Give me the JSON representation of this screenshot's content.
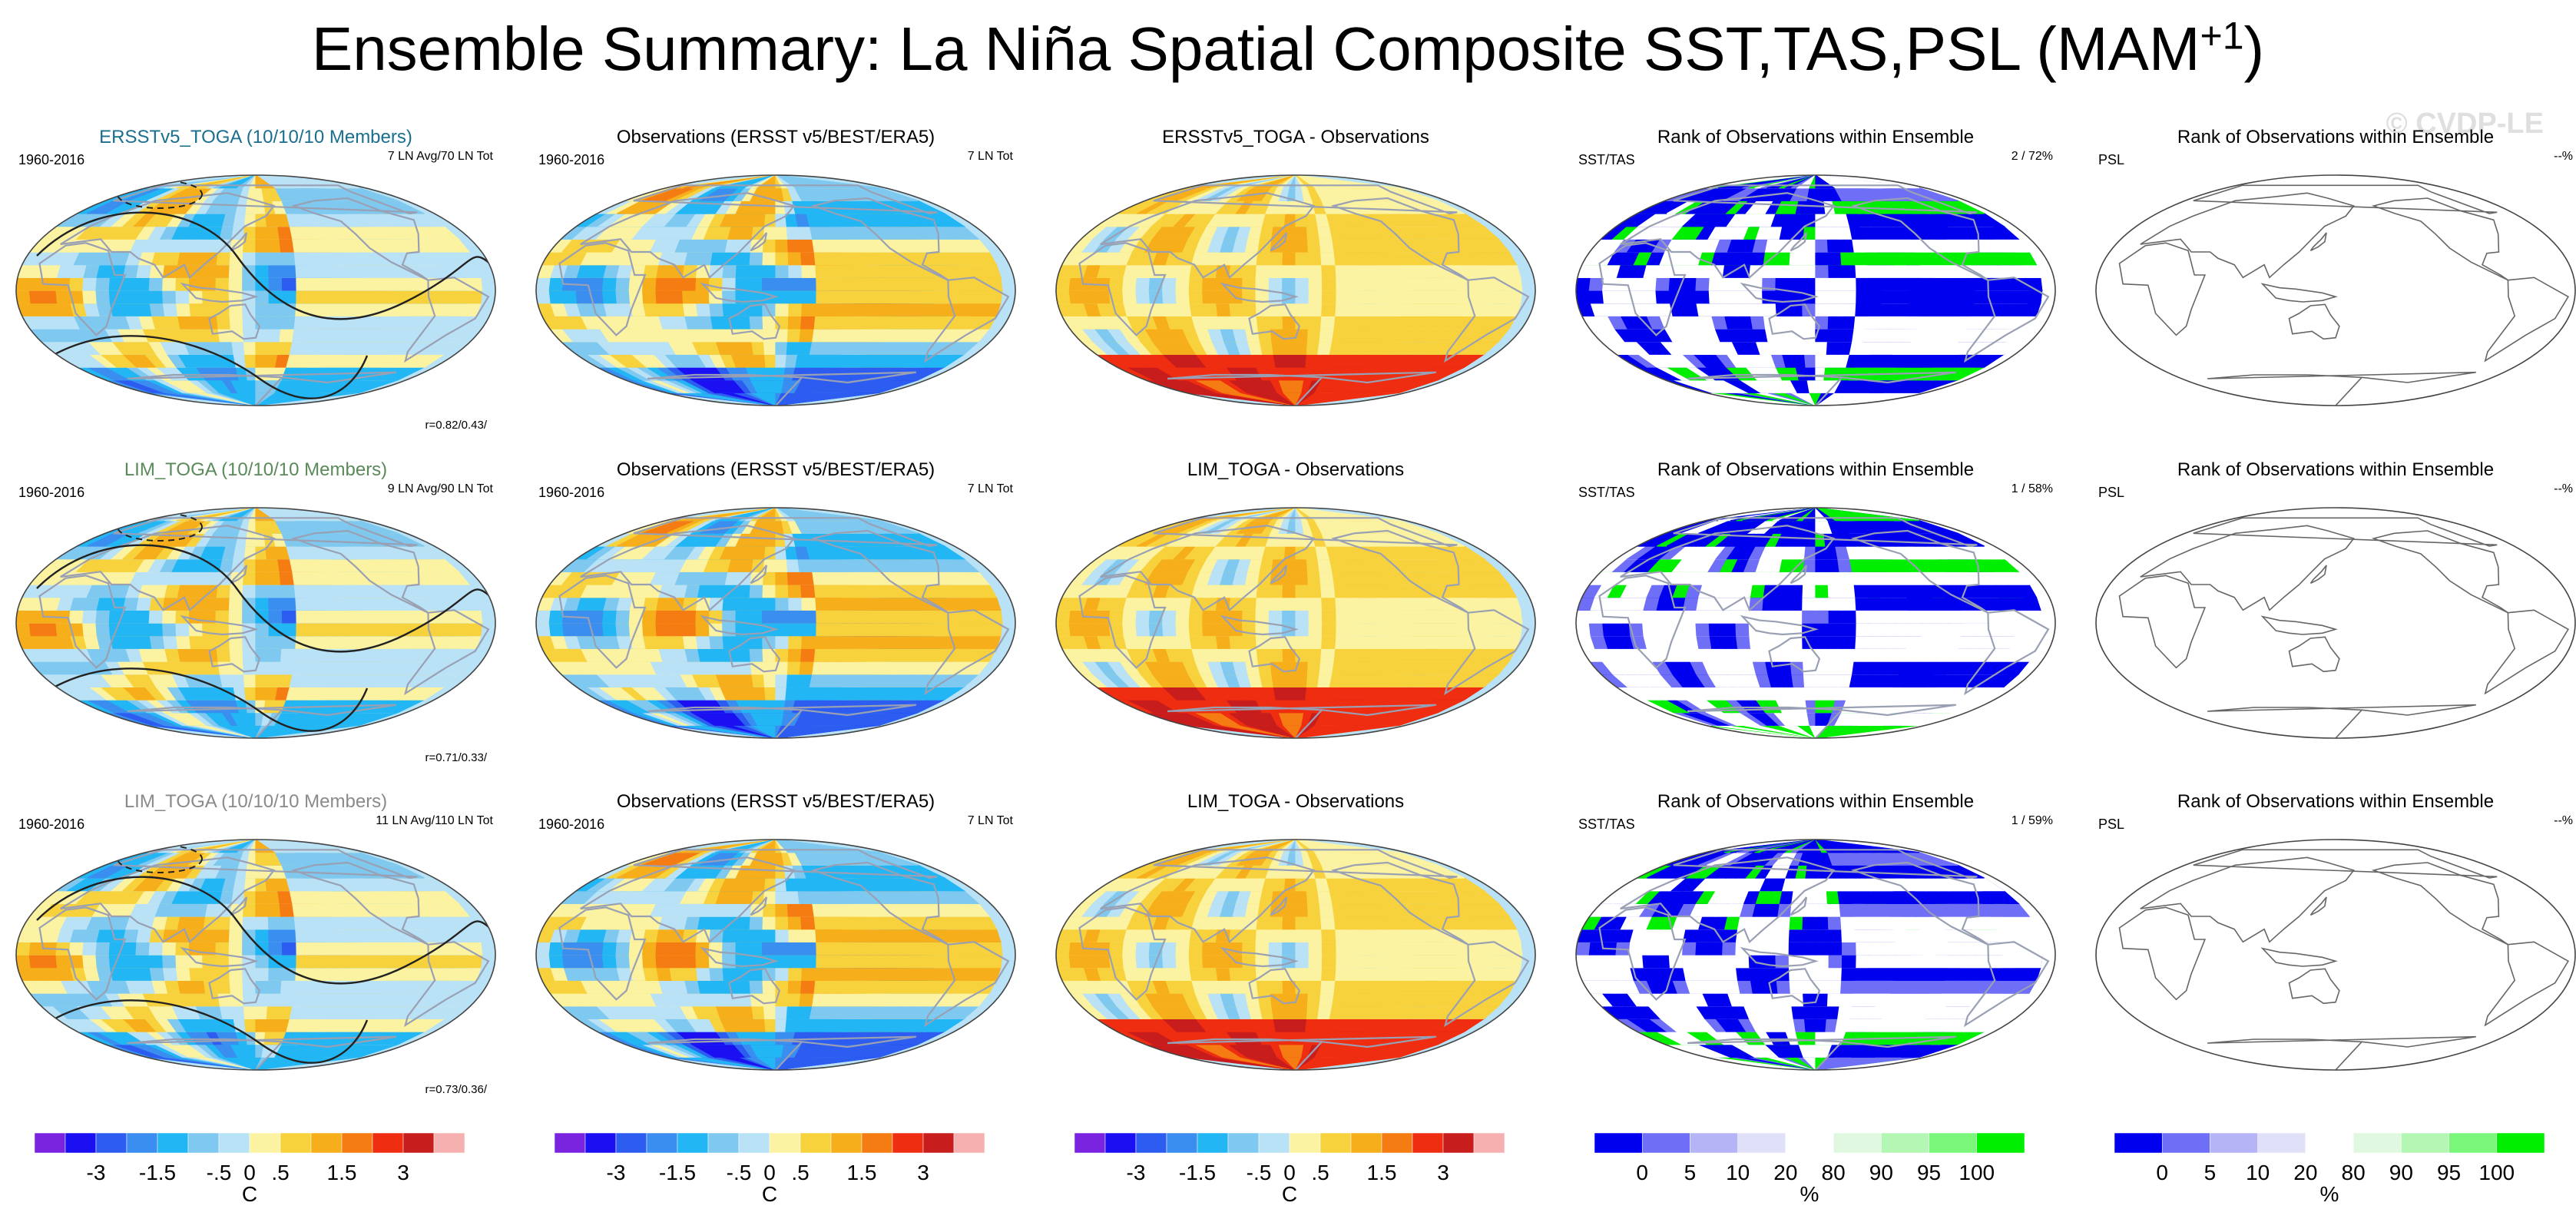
{
  "title_main": "Ensemble Summary: La Niña Spatial Composite SST,TAS,PSL (MAM",
  "title_sup": "+1",
  "title_end": ")",
  "watermark": "© CVDP-LE",
  "colors": {
    "diverging": [
      "#7b24e0",
      "#1b10f2",
      "#2c5df0",
      "#3a8ef0",
      "#22b6f4",
      "#7fc9f0",
      "#b9e2f6",
      "#fbf3a1",
      "#f8d23c",
      "#f6ae1a",
      "#f47c12",
      "#ef2d10",
      "#c81d1d",
      "#f7b0b0"
    ],
    "rank": [
      "#0000ee",
      "#6e6ef6",
      "#b4b4f6",
      "#e0e0f8",
      "#ffffff",
      "#e0f8e0",
      "#b4f6b4",
      "#7af67a",
      "#00ee00"
    ],
    "coastline": "#9aa0b4",
    "contour": "#222222"
  },
  "chart_data": [
    {
      "type": "heatmap",
      "row": 1,
      "col": 1,
      "title": "ERSSTv5_TOGA (10/10/10 Members)",
      "title_color": "#1a6e8e",
      "left_label": "1960-2016",
      "right_label": "7 LN Avg/70 LN Tot",
      "corr_label": "r=0.82/0.43/",
      "kind": "ens"
    },
    {
      "type": "heatmap",
      "row": 1,
      "col": 2,
      "title": "Observations (ERSST v5/BEST/ERA5)",
      "title_color": "#000000",
      "left_label": "1960-2016",
      "right_label": "7 LN Tot",
      "kind": "obs"
    },
    {
      "type": "heatmap",
      "row": 1,
      "col": 3,
      "title": "ERSSTv5_TOGA - Observations",
      "title_color": "#000000",
      "kind": "diff"
    },
    {
      "type": "heatmap",
      "row": 1,
      "col": 4,
      "title": "Rank of Observations within Ensemble",
      "title_color": "#000000",
      "left_label": "SST/TAS",
      "right_label": "2 / 72%",
      "kind": "rank"
    },
    {
      "type": "heatmap",
      "row": 1,
      "col": 5,
      "title": "Rank of Observations within Ensemble",
      "title_color": "#000000",
      "left_label": "PSL",
      "right_label": "--%",
      "kind": "blank"
    },
    {
      "type": "heatmap",
      "row": 2,
      "col": 1,
      "title": "LIM_TOGA (10/10/10 Members)",
      "title_color": "#5a8a5a",
      "left_label": "1960-2016",
      "right_label": "9 LN Avg/90 LN Tot",
      "corr_label": "r=0.71/0.33/",
      "kind": "ens"
    },
    {
      "type": "heatmap",
      "row": 2,
      "col": 2,
      "title": "Observations (ERSST v5/BEST/ERA5)",
      "title_color": "#000000",
      "left_label": "1960-2016",
      "right_label": "7 LN Tot",
      "kind": "obs"
    },
    {
      "type": "heatmap",
      "row": 2,
      "col": 3,
      "title": "LIM_TOGA - Observations",
      "title_color": "#000000",
      "kind": "diff"
    },
    {
      "type": "heatmap",
      "row": 2,
      "col": 4,
      "title": "Rank of Observations within Ensemble",
      "title_color": "#000000",
      "left_label": "SST/TAS",
      "right_label": "1 / 58%",
      "kind": "rank"
    },
    {
      "type": "heatmap",
      "row": 2,
      "col": 5,
      "title": "Rank of Observations within Ensemble",
      "title_color": "#000000",
      "left_label": "PSL",
      "right_label": "--%",
      "kind": "blank"
    },
    {
      "type": "heatmap",
      "row": 3,
      "col": 1,
      "title": "LIM_TOGA (10/10/10 Members)",
      "title_color": "#8a8a8a",
      "left_label": "1960-2016",
      "right_label": "11 LN Avg/110 LN Tot",
      "corr_label": "r=0.73/0.36/",
      "kind": "ens"
    },
    {
      "type": "heatmap",
      "row": 3,
      "col": 2,
      "title": "Observations (ERSST v5/BEST/ERA5)",
      "title_color": "#000000",
      "left_label": "1960-2016",
      "right_label": "7 LN Tot",
      "kind": "obs"
    },
    {
      "type": "heatmap",
      "row": 3,
      "col": 3,
      "title": "LIM_TOGA - Observations",
      "title_color": "#000000",
      "kind": "diff"
    },
    {
      "type": "heatmap",
      "row": 3,
      "col": 4,
      "title": "Rank of Observations within Ensemble",
      "title_color": "#000000",
      "left_label": "SST/TAS",
      "right_label": "1 / 59%",
      "kind": "rank"
    },
    {
      "type": "heatmap",
      "row": 3,
      "col": 5,
      "title": "Rank of Observations within Ensemble",
      "title_color": "#000000",
      "left_label": "PSL",
      "right_label": "--%",
      "kind": "blank"
    }
  ],
  "colorbars": [
    {
      "kind": "diverging",
      "tick_labels": [
        "-3",
        "-1.5",
        "-.5",
        "0",
        ".5",
        "1.5",
        "3"
      ],
      "tick_positions": [
        2,
        4,
        6,
        7,
        8,
        10,
        12
      ],
      "unit": "C"
    },
    {
      "kind": "diverging",
      "tick_labels": [
        "-3",
        "-1.5",
        "-.5",
        "0",
        ".5",
        "1.5",
        "3"
      ],
      "tick_positions": [
        2,
        4,
        6,
        7,
        8,
        10,
        12
      ],
      "unit": "C"
    },
    {
      "kind": "diverging",
      "tick_labels": [
        "-3",
        "-1.5",
        "-.5",
        "0",
        ".5",
        "1.5",
        "3"
      ],
      "tick_positions": [
        2,
        4,
        6,
        7,
        8,
        10,
        12
      ],
      "unit": "C"
    },
    {
      "kind": "rank",
      "tick_labels": [
        "0",
        "5",
        "10",
        "20",
        "80",
        "90",
        "95",
        "100"
      ],
      "tick_positions": [
        1,
        2,
        3,
        4,
        5,
        6,
        7,
        8
      ],
      "unit": "%"
    },
    {
      "kind": "rank",
      "tick_labels": [
        "0",
        "5",
        "10",
        "20",
        "80",
        "90",
        "95",
        "100"
      ],
      "tick_positions": [
        1,
        2,
        3,
        4,
        5,
        6,
        7,
        8
      ],
      "unit": "%"
    }
  ]
}
